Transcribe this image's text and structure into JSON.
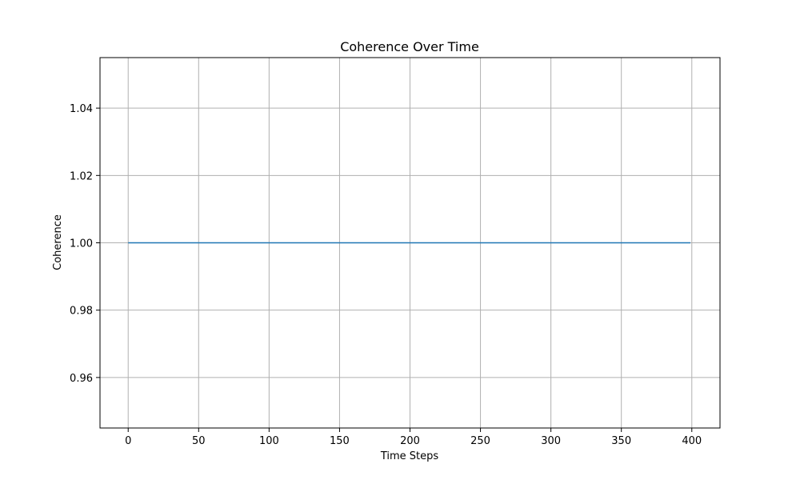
{
  "chart_data": {
    "type": "line",
    "title": "Coherence Over Time",
    "xlabel": "Time Steps",
    "ylabel": "Coherence",
    "xlim": [
      -20,
      420
    ],
    "ylim": [
      0.945,
      1.055
    ],
    "x_ticks": [
      0,
      50,
      100,
      150,
      200,
      250,
      300,
      350,
      400
    ],
    "y_ticks": [
      0.96,
      0.98,
      1.0,
      1.02,
      1.04
    ],
    "y_tick_labels": [
      "0.96",
      "0.98",
      "1.00",
      "1.02",
      "1.04"
    ],
    "grid": true,
    "series": [
      {
        "x": [
          0,
          399
        ],
        "y": [
          1.0,
          1.0
        ],
        "color": "#1f77b4"
      }
    ]
  }
}
